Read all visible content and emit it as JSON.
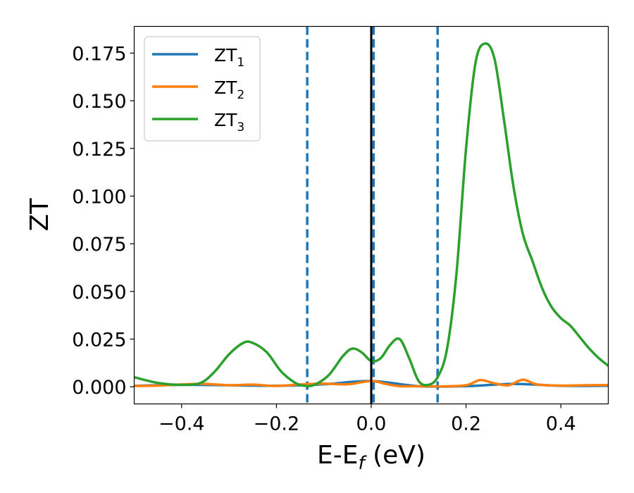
{
  "chart_data": {
    "type": "line",
    "xlabel": "E-E",
    "xlabel_sub": "f",
    "xlabel_unit": " (eV)",
    "ylabel": "ZT",
    "xlim": [
      -0.5,
      0.5
    ],
    "ylim": [
      -0.009,
      0.189
    ],
    "xticks": [
      -0.4,
      -0.2,
      0.0,
      0.2,
      0.4
    ],
    "xtick_labels": [
      "−0.4",
      "−0.2",
      "0.0",
      "0.2",
      "0.4"
    ],
    "yticks": [
      0,
      0.025,
      0.05,
      0.075,
      0.1,
      0.125,
      0.15,
      0.175
    ],
    "ytick_labels": [
      "0.000",
      "0.025",
      "0.050",
      "0.075",
      "0.100",
      "0.125",
      "0.150",
      "0.175"
    ],
    "grid": false,
    "legend_position": "top-left",
    "series": [
      {
        "name": "ZT",
        "name_sub": "1",
        "color": "#1f77b4",
        "x": [
          -0.5,
          -0.4,
          -0.3,
          -0.2,
          -0.1,
          0.0,
          0.1,
          0.2,
          0.3,
          0.4,
          0.5
        ],
        "y": [
          0.0005,
          0.001,
          0.0008,
          0.0005,
          0.0013,
          0.003,
          0.0003,
          0.0003,
          0.0015,
          0.0005,
          0.0005
        ]
      },
      {
        "name": "ZT",
        "name_sub": "2",
        "color": "#ff7f0e",
        "x": [
          -0.5,
          -0.45,
          -0.4,
          -0.35,
          -0.3,
          -0.25,
          -0.2,
          -0.15,
          -0.1,
          -0.05,
          0.0,
          0.03,
          0.06,
          0.1,
          0.15,
          0.2,
          0.23,
          0.26,
          0.29,
          0.32,
          0.35,
          0.4,
          0.45,
          0.5
        ],
        "y": [
          0.0004,
          0.0006,
          0.0012,
          0.0015,
          0.0008,
          0.0011,
          0.0004,
          0.0012,
          0.0016,
          0.0013,
          0.003,
          0.0015,
          0.0003,
          0.0003,
          0.0002,
          0.0008,
          0.0035,
          0.0018,
          0.0008,
          0.0037,
          0.0012,
          0.0006,
          0.0008,
          0.0009
        ]
      },
      {
        "name": "ZT",
        "name_sub": "3",
        "color": "#2ca02c",
        "x": [
          -0.5,
          -0.45,
          -0.4,
          -0.36,
          -0.33,
          -0.3,
          -0.27,
          -0.25,
          -0.22,
          -0.19,
          -0.16,
          -0.14,
          -0.12,
          -0.09,
          -0.06,
          -0.04,
          -0.02,
          0.0,
          0.02,
          0.04,
          0.06,
          0.08,
          0.1,
          0.12,
          0.14,
          0.16,
          0.18,
          0.2,
          0.22,
          0.24,
          0.26,
          0.28,
          0.3,
          0.32,
          0.34,
          0.36,
          0.38,
          0.4,
          0.42,
          0.44,
          0.46,
          0.48,
          0.5
        ],
        "y": [
          0.005,
          0.002,
          0.001,
          0.002,
          0.008,
          0.017,
          0.023,
          0.023,
          0.018,
          0.008,
          0.002,
          0.0005,
          0.001,
          0.006,
          0.016,
          0.02,
          0.018,
          0.0135,
          0.015,
          0.022,
          0.025,
          0.015,
          0.003,
          0.001,
          0.005,
          0.02,
          0.06,
          0.125,
          0.17,
          0.18,
          0.172,
          0.14,
          0.105,
          0.08,
          0.066,
          0.052,
          0.042,
          0.036,
          0.032,
          0.026,
          0.02,
          0.015,
          0.011
        ]
      }
    ],
    "vlines": [
      {
        "x": -0.135,
        "color": "#1f77b4",
        "style": "dashed"
      },
      {
        "x": 0.005,
        "color": "#1f77b4",
        "style": "dashed"
      },
      {
        "x": 0.14,
        "color": "#1f77b4",
        "style": "dashed"
      },
      {
        "x": 0.0,
        "color": "#000000",
        "style": "solid"
      }
    ]
  }
}
